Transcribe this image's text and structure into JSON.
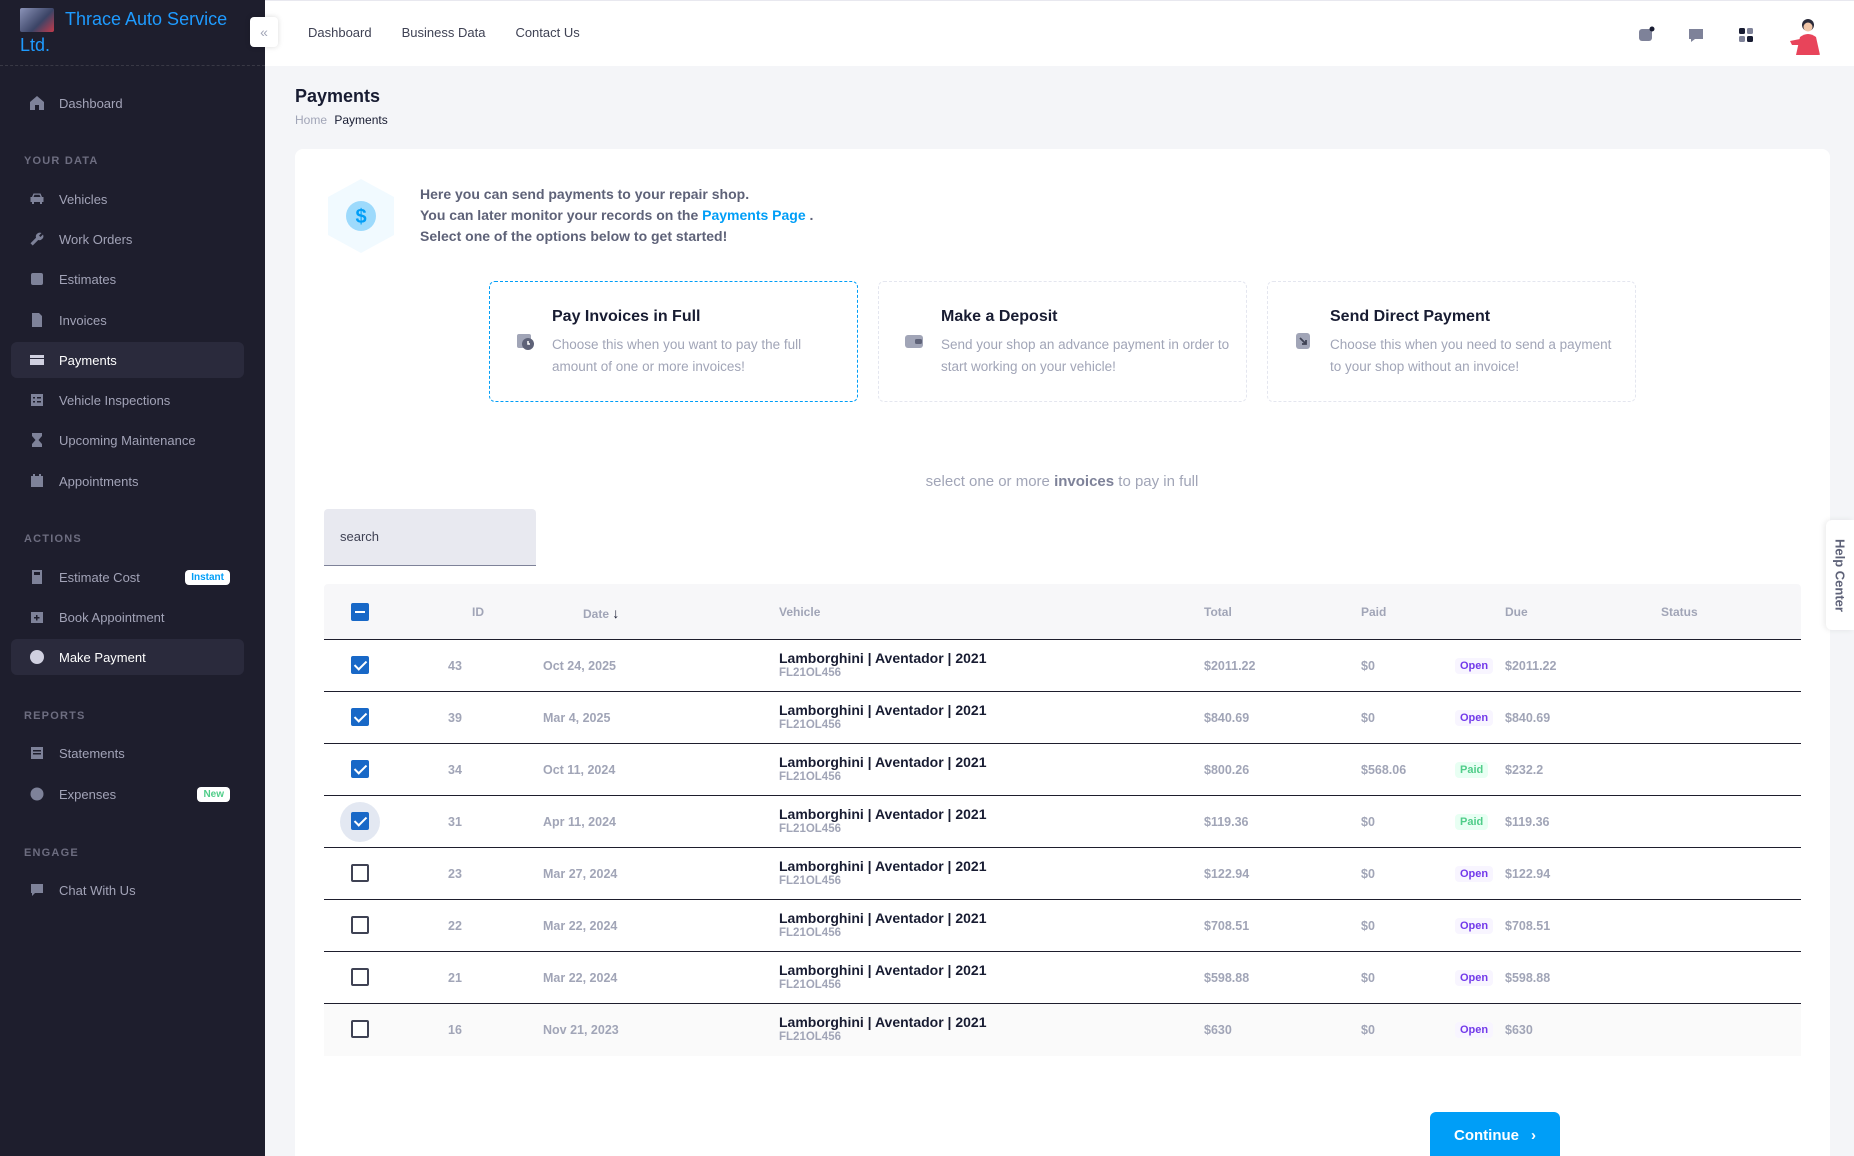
{
  "brand": {
    "name": "Thrace Auto Service Ltd."
  },
  "sidebar": {
    "dashboard": "Dashboard",
    "sections": {
      "your_data": "YOUR DATA",
      "actions": "ACTIONS",
      "reports": "REPORTS",
      "engage": "ENGAGE"
    },
    "items": {
      "vehicles": "Vehicles",
      "work_orders": "Work Orders",
      "estimates": "Estimates",
      "invoices": "Invoices",
      "payments": "Payments",
      "vehicle_inspections": "Vehicle Inspections",
      "upcoming_maintenance": "Upcoming Maintenance",
      "appointments": "Appointments",
      "estimate_cost": "Estimate Cost",
      "book_appointment": "Book Appointment",
      "make_payment": "Make Payment",
      "statements": "Statements",
      "expenses": "Expenses",
      "chat_with_us": "Chat With Us"
    },
    "badges": {
      "instant": "Instant",
      "new": "New"
    }
  },
  "header": {
    "nav": {
      "dashboard": "Dashboard",
      "business_data": "Business Data",
      "contact_us": "Contact Us"
    }
  },
  "page": {
    "title": "Payments",
    "breadcrumb_home": "Home",
    "breadcrumb_current": "Payments"
  },
  "intro": {
    "line1": "Here you can send payments to your repair shop.",
    "line2_pre": "You can later monitor your records on the",
    "line2_link": "Payments Page",
    "line2_post": ".",
    "line3": "Select one of the options below to get started!"
  },
  "options": {
    "full": {
      "title": "Pay Invoices in Full",
      "desc": "Choose this when you want to pay the full amount of one or more invoices!"
    },
    "deposit": {
      "title": "Make a Deposit",
      "desc": "Send your shop an advance payment in order to start working on your vehicle!"
    },
    "direct": {
      "title": "Send Direct Payment",
      "desc": "Choose this when you need to send a payment to your shop without an invoice!"
    }
  },
  "hint": {
    "pre": "select one or more",
    "bold": "invoices",
    "post": "to pay in full"
  },
  "search": {
    "placeholder": "search"
  },
  "table": {
    "headers": {
      "id": "ID",
      "date": "Date",
      "vehicle": "Vehicle",
      "total": "Total",
      "paid": "Paid",
      "due": "Due",
      "status": "Status"
    },
    "rows": [
      {
        "checked": true,
        "id": "43",
        "date": "Oct 24, 2025",
        "vehicle": "Lamborghini | Aventador | 2021",
        "plate": "FL21OL456",
        "total": "$2011.22",
        "paid": "$0",
        "due": "$2011.22",
        "status": "Open"
      },
      {
        "checked": true,
        "id": "39",
        "date": "Mar 4, 2025",
        "vehicle": "Lamborghini | Aventador | 2021",
        "plate": "FL21OL456",
        "total": "$840.69",
        "paid": "$0",
        "due": "$840.69",
        "status": "Open"
      },
      {
        "checked": true,
        "id": "34",
        "date": "Oct 11, 2024",
        "vehicle": "Lamborghini | Aventador | 2021",
        "plate": "FL21OL456",
        "total": "$800.26",
        "paid": "$568.06",
        "due": "$232.2",
        "status": "Paid"
      },
      {
        "checked": true,
        "id": "31",
        "date": "Apr 11, 2024",
        "vehicle": "Lamborghini | Aventador | 2021",
        "plate": "FL21OL456",
        "total": "$119.36",
        "paid": "$0",
        "due": "$119.36",
        "status": "Paid"
      },
      {
        "checked": false,
        "id": "23",
        "date": "Mar 27, 2024",
        "vehicle": "Lamborghini | Aventador | 2021",
        "plate": "FL21OL456",
        "total": "$122.94",
        "paid": "$0",
        "due": "$122.94",
        "status": "Open"
      },
      {
        "checked": false,
        "id": "22",
        "date": "Mar 22, 2024",
        "vehicle": "Lamborghini | Aventador | 2021",
        "plate": "FL21OL456",
        "total": "$708.51",
        "paid": "$0",
        "due": "$708.51",
        "status": "Open"
      },
      {
        "checked": false,
        "id": "21",
        "date": "Mar 22, 2024",
        "vehicle": "Lamborghini | Aventador | 2021",
        "plate": "FL21OL456",
        "total": "$598.88",
        "paid": "$0",
        "due": "$598.88",
        "status": "Open"
      },
      {
        "checked": false,
        "id": "16",
        "date": "Nov 21, 2023",
        "vehicle": "Lamborghini | Aventador | 2021",
        "plate": "FL21OL456",
        "total": "$630",
        "paid": "$0",
        "due": "$630",
        "status": "Open"
      }
    ]
  },
  "continue_label": "Continue",
  "help_center": "Help Center",
  "colors": {
    "accent": "#009ef7",
    "sidebar_bg": "#1e1e2d",
    "checkbox": "#1868c7",
    "open": "#7239ea",
    "paid": "#50cd89"
  }
}
